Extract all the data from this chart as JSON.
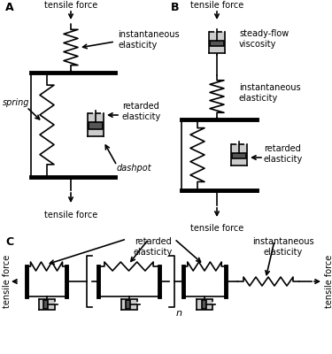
{
  "bg_color": "#ffffff",
  "line_color": "#000000",
  "tensile_force": "tensile force",
  "instantaneous_elasticity": "instantaneous\nelasticity",
  "retarded_elasticity": "retarded\nelasticity",
  "steady_flow_viscosity": "steady-flow\nviscosity",
  "spring_label": "spring",
  "dashpot_label": "dashpot"
}
